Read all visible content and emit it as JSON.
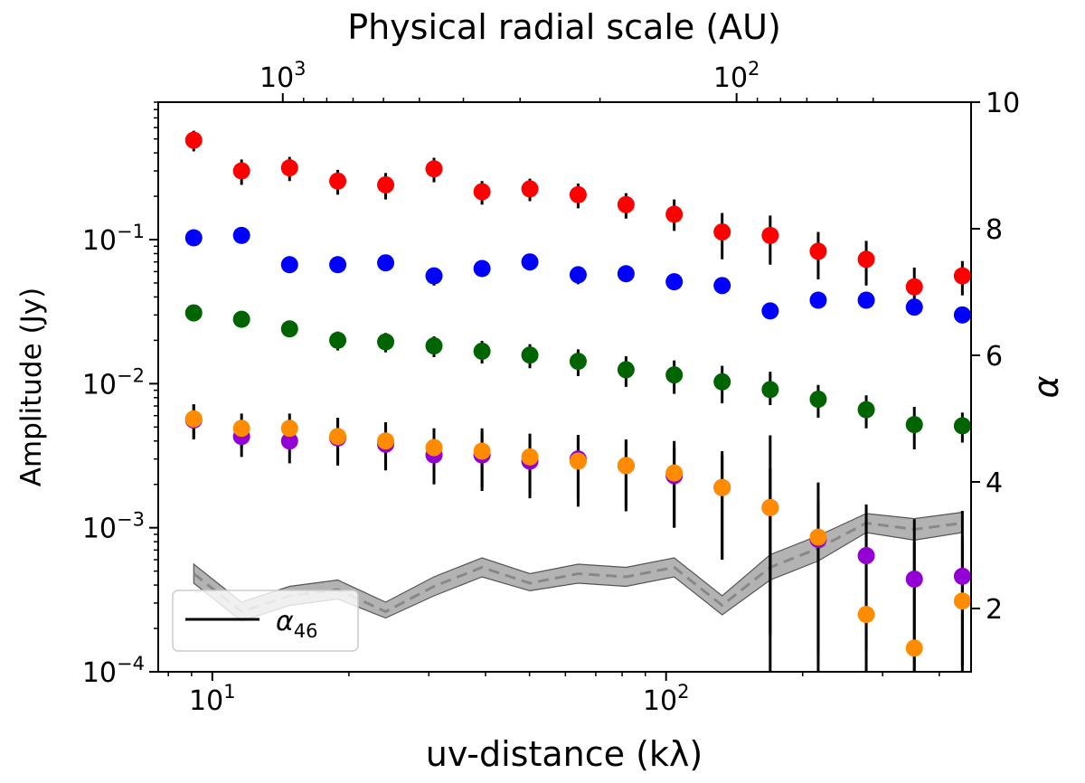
{
  "chart_data": {
    "type": "scatter",
    "title": "",
    "xlabel": "uv-distance (kλ)",
    "x2label": "Physical radial scale (AU)",
    "ylabel": "Amplitude (Jy)",
    "y2label": "α",
    "xscale": "log",
    "yscale": "log",
    "xlim": [
      7.6,
      470
    ],
    "ylim": [
      0.0001,
      0.9
    ],
    "y2lim": [
      1.0,
      10.0
    ],
    "grid": false,
    "x_ticks": [
      {
        "value": 10,
        "base": "10",
        "exp": "1"
      },
      {
        "value": 100,
        "base": "10",
        "exp": "2"
      }
    ],
    "x2_ticks": [
      {
        "x_position": 14.3,
        "base": "10",
        "exp": "3"
      },
      {
        "x_position": 143,
        "base": "10",
        "exp": "2"
      }
    ],
    "y_ticks": [
      {
        "value": 0.0001,
        "base": "10",
        "exp": "−4"
      },
      {
        "value": 0.001,
        "base": "10",
        "exp": "−3"
      },
      {
        "value": 0.01,
        "base": "10",
        "exp": "−2"
      },
      {
        "value": 0.1,
        "base": "10",
        "exp": "−1"
      }
    ],
    "y2_ticks": [
      "2",
      "4",
      "6",
      "8",
      "10"
    ],
    "x": [
      9.1,
      11.6,
      14.8,
      18.9,
      24.1,
      30.8,
      39.3,
      50.1,
      64.0,
      81.6,
      104.2,
      132.9,
      169.6,
      216.4,
      276.1,
      352.4,
      449.7
    ],
    "series": [
      {
        "color": "#ff0000",
        "values": [
          0.49,
          0.3,
          0.315,
          0.255,
          0.24,
          0.31,
          0.215,
          0.225,
          0.205,
          0.175,
          0.15,
          0.113,
          0.107,
          0.083,
          0.073,
          0.047,
          0.056
        ],
        "err_low": [
          0.08,
          0.06,
          0.06,
          0.05,
          0.05,
          0.06,
          0.04,
          0.04,
          0.04,
          0.035,
          0.035,
          0.04,
          0.04,
          0.03,
          0.025,
          0.017,
          0.015
        ],
        "err_high": [
          0.08,
          0.06,
          0.06,
          0.05,
          0.05,
          0.06,
          0.04,
          0.04,
          0.04,
          0.035,
          0.04,
          0.04,
          0.04,
          0.03,
          0.025,
          0.017,
          0.015
        ]
      },
      {
        "color": "#0000ff",
        "values": [
          0.103,
          0.107,
          0.067,
          0.067,
          0.069,
          0.056,
          0.063,
          0.07,
          0.057,
          0.058,
          0.051,
          0.048,
          0.032,
          0.038,
          0.038,
          0.034,
          0.03
        ],
        "err_low": [
          0.004,
          0.004,
          0.004,
          0.004,
          0.004,
          0.008,
          0.004,
          0.004,
          0.008,
          0.004,
          0.006,
          0.004,
          0.003,
          0.003,
          0.003,
          0.002,
          0.002
        ],
        "err_high": [
          0.004,
          0.004,
          0.004,
          0.004,
          0.004,
          0.004,
          0.004,
          0.004,
          0.004,
          0.004,
          0.004,
          0.004,
          0.003,
          0.003,
          0.003,
          0.002,
          0.002
        ]
      },
      {
        "color": "#006400",
        "values": [
          0.031,
          0.028,
          0.024,
          0.02,
          0.0195,
          0.0183,
          0.0168,
          0.0158,
          0.0143,
          0.0125,
          0.0115,
          0.0103,
          0.0091,
          0.0078,
          0.0066,
          0.0052,
          0.0051
        ],
        "err_low": [
          0.002,
          0.002,
          0.003,
          0.003,
          0.003,
          0.003,
          0.003,
          0.003,
          0.003,
          0.003,
          0.003,
          0.003,
          0.002,
          0.002,
          0.0017,
          0.0017,
          0.0012
        ],
        "err_high": [
          0.002,
          0.002,
          0.003,
          0.003,
          0.003,
          0.003,
          0.003,
          0.003,
          0.003,
          0.003,
          0.003,
          0.003,
          0.003,
          0.002,
          0.0017,
          0.0017,
          0.0012
        ]
      },
      {
        "color": "#9400d3",
        "values": [
          0.0056,
          0.0043,
          0.004,
          0.0042,
          0.0038,
          0.0032,
          0.0032,
          0.0029,
          0.003,
          0.0027,
          0.0023,
          0.0019,
          0.00138,
          0.00083,
          0.00064,
          0.00044,
          0.00046
        ],
        "err_low": [
          0.0015,
          0.0012,
          0.0012,
          0.0015,
          0.0013,
          0.0012,
          0.0014,
          0.0013,
          0.0014,
          0.0013,
          0.0013,
          0.0013,
          0.0012,
          0.0007,
          0.0005,
          0.00035,
          0.0004
        ],
        "err_high": [
          0.0015,
          0.0012,
          0.0012,
          0.0015,
          0.0013,
          0.0012,
          0.0014,
          0.0013,
          0.0014,
          0.0013,
          0.0013,
          0.0013,
          0.0012,
          0.0007,
          0.0005,
          0.00035,
          0.0004
        ]
      },
      {
        "color": "#ff8c00",
        "values": [
          0.0057,
          0.0049,
          0.0049,
          0.0043,
          0.004,
          0.0036,
          0.0034,
          0.0031,
          0.0029,
          0.0027,
          0.0024,
          0.0019,
          0.00138,
          0.00086,
          0.00025,
          0.000146,
          0.00031
        ],
        "err_low": [
          0.0015,
          0.0013,
          0.0013,
          0.0015,
          0.0014,
          0.0013,
          0.0015,
          0.0014,
          0.0015,
          0.0014,
          0.0014,
          0.0013,
          0.0013,
          0.0008,
          0.0002,
          0.0001,
          0.0002
        ],
        "err_high": [
          0.0015,
          0.0013,
          0.0013,
          0.0015,
          0.0014,
          0.0013,
          0.0015,
          0.0014,
          0.0015,
          0.0014,
          0.0016,
          0.0015,
          0.003,
          0.0012,
          0.0012,
          0.001,
          0.001
        ]
      }
    ],
    "alpha_series": {
      "name": "α₄₆",
      "label_base": "α",
      "label_sub": "46",
      "color": "#888888",
      "band_color": "#808080",
      "values": [
        2.55,
        1.95,
        2.2,
        2.3,
        1.95,
        2.35,
        2.65,
        2.4,
        2.55,
        2.5,
        2.65,
        2.05,
        2.65,
        2.95,
        3.35,
        3.25,
        3.35
      ],
      "band_low": [
        2.4,
        1.8,
        2.05,
        2.15,
        1.85,
        2.2,
        2.5,
        2.28,
        2.4,
        2.35,
        2.5,
        1.9,
        2.45,
        2.75,
        3.2,
        3.08,
        3.2
      ],
      "band_high": [
        2.7,
        2.1,
        2.35,
        2.45,
        2.1,
        2.5,
        2.8,
        2.55,
        2.7,
        2.65,
        2.8,
        2.2,
        2.85,
        3.15,
        3.5,
        3.42,
        3.52
      ]
    },
    "legend_position": "lower-left"
  }
}
